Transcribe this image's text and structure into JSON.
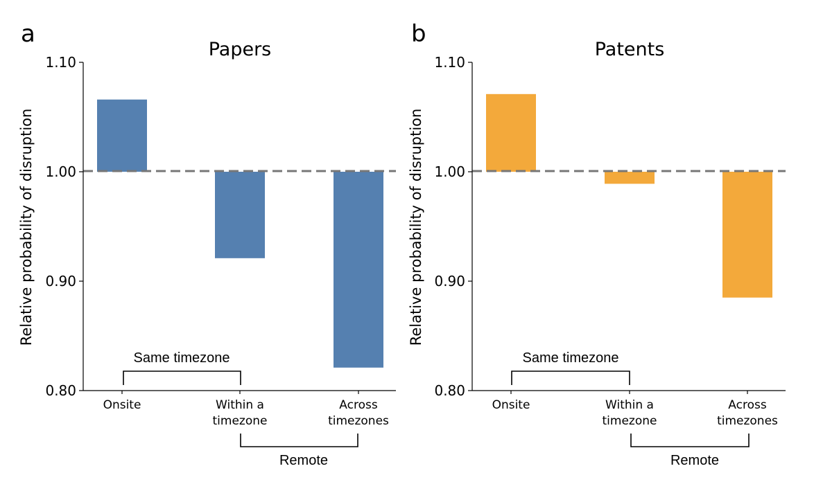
{
  "chart_data": [
    {
      "type": "bar",
      "panel_label": "a",
      "title": "Papers",
      "ylabel": "Relative probability of disruption",
      "xlabel": "",
      "categories": [
        [
          "Onsite"
        ],
        [
          "Within a",
          "timezone"
        ],
        [
          "Across",
          "timezones"
        ]
      ],
      "values": [
        1.066,
        0.921,
        0.821
      ],
      "baseline": 1.0,
      "ylim": [
        0.8,
        1.1
      ],
      "yticks": [
        "0.80",
        "0.90",
        "1.00",
        "1.10"
      ],
      "ytick_values": [
        0.8,
        0.9,
        1.0,
        1.1
      ],
      "color": "#5580b0",
      "brackets": {
        "top": "Same timezone",
        "bottom": "Remote"
      }
    },
    {
      "type": "bar",
      "panel_label": "b",
      "title": "Patents",
      "ylabel": "Relative probability of disruption",
      "xlabel": "",
      "categories": [
        [
          "Onsite"
        ],
        [
          "Within a",
          "timezone"
        ],
        [
          "Across",
          "timezones"
        ]
      ],
      "values": [
        1.071,
        0.989,
        0.885
      ],
      "baseline": 1.0,
      "ylim": [
        0.8,
        1.1
      ],
      "yticks": [
        "0.80",
        "0.90",
        "1.00",
        "1.10"
      ],
      "ytick_values": [
        0.8,
        0.9,
        1.0,
        1.1
      ],
      "color": "#f3a93b",
      "brackets": {
        "top": "Same timezone",
        "bottom": "Remote"
      }
    }
  ]
}
